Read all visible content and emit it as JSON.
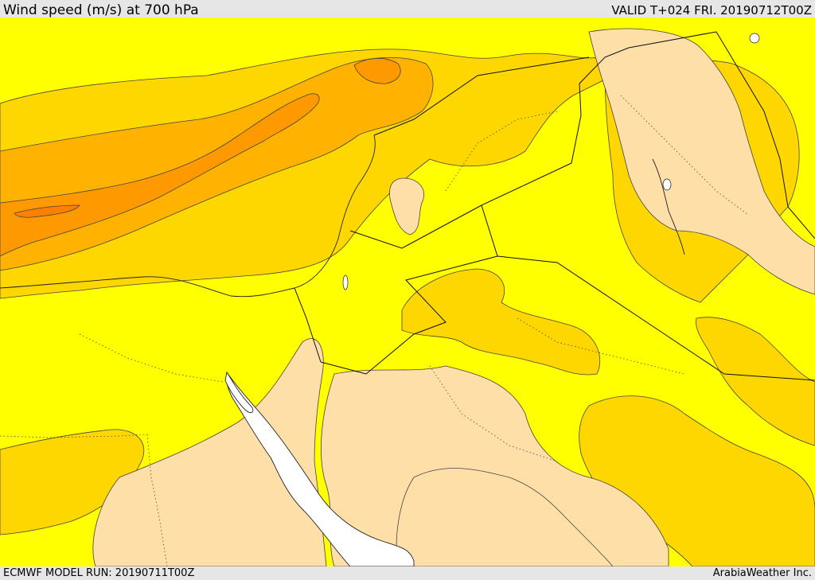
{
  "header": {
    "title": "Wind speed (m/s) at 700 hPa",
    "valid": "VALID T+024 FRI. 20190712T00Z"
  },
  "footer": {
    "model_run": "ECMWF MODEL RUN: 20190711T00Z",
    "credit": "ArabiaWeather Inc."
  },
  "map": {
    "variable": "wind speed",
    "units": "m/s",
    "level": "700 hPa",
    "region": "Eastern Mediterranean / Levant / Arabian Peninsula",
    "shading_colors": {
      "lowest_band": "#ffdfa8",
      "low_band": "#ffff00",
      "mid_band": "#ffd700",
      "higher_band": "#ffb300",
      "high_band": "#ff9900",
      "highest_band": "#ff8000",
      "water_no_data": "#ffffff"
    },
    "features": [
      "wind-speed-contours",
      "country-borders",
      "admin-borders",
      "coastlines"
    ]
  }
}
